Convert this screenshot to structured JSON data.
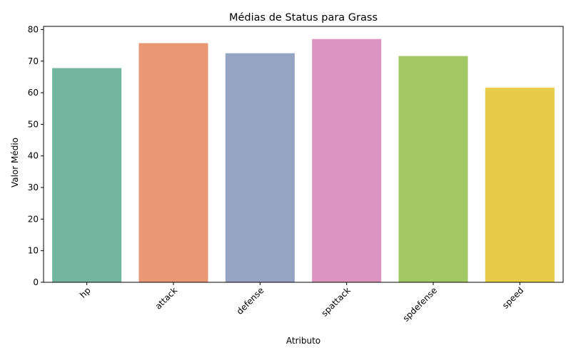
{
  "chart_data": {
    "type": "bar",
    "title": "Médias de Status para Grass",
    "xlabel": "Atributo",
    "ylabel": "Valor Médio",
    "categories": [
      "hp",
      "attack",
      "defense",
      "spattack",
      "spdefense",
      "speed"
    ],
    "values": [
      67.8,
      75.7,
      72.5,
      77.0,
      71.6,
      61.6
    ],
    "colors": [
      "#73b6a0",
      "#ea9776",
      "#95a4c3",
      "#dc95c0",
      "#a3c965",
      "#e7cb49"
    ],
    "ylim": [
      0,
      81
    ],
    "yticks": [
      0,
      10,
      20,
      30,
      40,
      50,
      60,
      70,
      80
    ],
    "xtick_rotation": 45,
    "grid": false,
    "legend": false
  }
}
